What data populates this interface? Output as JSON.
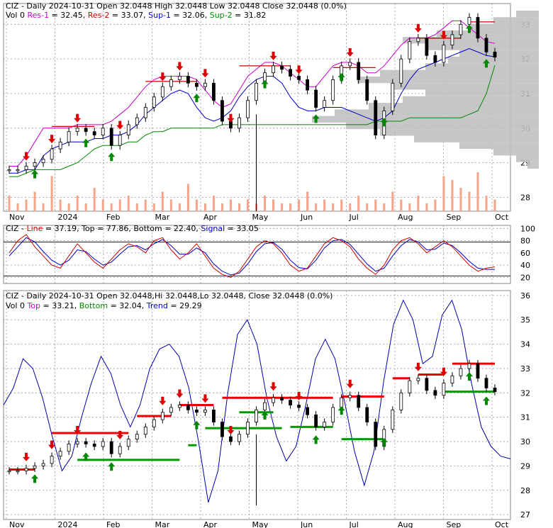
{
  "chart_data": [
    {
      "type": "ohlc",
      "panel": "price",
      "header": {
        "parts": [
          {
            "text": "CIZ - Daily 2024-10-31 Open 32.0448   High 32.0448   Low 32.0448   Close 32.0448 (0.0%)",
            "color": "#000000"
          }
        ],
        "legend": [
          {
            "text": "Vol 0 ",
            "color": "#000000"
          },
          {
            "text": "Res-1",
            "color": "#cc00cc"
          },
          {
            "text": " = 32.45, ",
            "color": "#000000"
          },
          {
            "text": "Res-2",
            "color": "#cc0000"
          },
          {
            "text": " = 33.07, ",
            "color": "#000000"
          },
          {
            "text": "Sup-1",
            "color": "#0000cc"
          },
          {
            "text": " = 32.06, ",
            "color": "#000000"
          },
          {
            "text": "Sup-2",
            "color": "#008800"
          },
          {
            "text": " = 31.82",
            "color": "#000000"
          }
        ]
      },
      "ylim": [
        27.6,
        33.6
      ],
      "yticks": [
        28,
        29,
        30,
        31,
        32,
        33
      ],
      "xlabels": [
        "Nov",
        "2024",
        "Feb",
        "Mar",
        "Apr",
        "May",
        "Jun",
        "Jul",
        "Aug",
        "Sep",
        "Oct"
      ],
      "closes": [
        28.8,
        28.8,
        28.9,
        29.0,
        29.1,
        29.4,
        29.6,
        29.9,
        30.0,
        29.9,
        29.8,
        30.0,
        29.5,
        29.8,
        30.1,
        30.3,
        30.6,
        30.9,
        31.2,
        31.4,
        31.5,
        31.3,
        31.2,
        31.3,
        30.8,
        30.2,
        30.0,
        30.3,
        30.8,
        31.3,
        31.6,
        31.8,
        31.7,
        31.5,
        31.4,
        31.1,
        30.6,
        30.8,
        31.4,
        31.8,
        31.9,
        31.4,
        30.8,
        29.8,
        30.5,
        31.3,
        32.0,
        32.5,
        32.6,
        32.1,
        31.9,
        32.4,
        32.7,
        33.0,
        33.2,
        32.6,
        32.2,
        32.05
      ],
      "resistance_1": [
        28.9,
        28.9,
        29.2,
        29.6,
        30.0,
        30.0,
        30.0,
        30.0,
        30.1,
        30.1,
        30.1,
        30.1,
        30.2,
        30.4,
        30.6,
        30.9,
        31.2,
        31.4,
        31.5,
        31.5,
        31.5,
        31.5,
        31.4,
        31.1,
        30.8,
        30.6,
        30.7,
        31.1,
        31.5,
        31.7,
        31.9,
        31.9,
        31.8,
        31.6,
        31.4,
        31.2,
        31.2,
        31.5,
        31.8,
        31.9,
        31.9,
        31.8,
        31.6,
        31.6,
        31.8,
        32.1,
        32.4,
        32.6,
        32.6,
        32.6,
        32.7,
        32.9,
        33.1,
        33.1,
        32.9,
        32.7,
        32.5,
        32.45
      ],
      "support_1": [
        28.7,
        28.7,
        28.8,
        28.8,
        29.2,
        29.4,
        29.5,
        29.6,
        29.6,
        29.6,
        29.7,
        29.7,
        29.8,
        29.8,
        29.9,
        30.1,
        30.4,
        30.6,
        30.8,
        31.0,
        31.1,
        31.0,
        30.6,
        30.3,
        30.2,
        30.3,
        30.5,
        30.9,
        31.2,
        31.4,
        31.5,
        31.5,
        31.3,
        30.9,
        30.6,
        30.5,
        30.5,
        30.6,
        30.6,
        30.6,
        30.5,
        30.4,
        30.3,
        30.2,
        30.3,
        30.5,
        31.0,
        31.4,
        31.7,
        31.8,
        31.9,
        32.0,
        32.1,
        32.2,
        32.3,
        32.2,
        32.1,
        32.06
      ],
      "support_2": [
        28.6,
        28.6,
        28.7,
        28.8,
        28.8,
        28.8,
        28.8,
        28.9,
        29.0,
        29.2,
        29.4,
        29.5,
        29.5,
        29.5,
        29.6,
        29.6,
        29.8,
        29.9,
        29.9,
        30.0,
        30.0,
        30.0,
        30.0,
        30.0,
        30.0,
        30.1,
        30.1,
        30.1,
        30.1,
        30.1,
        30.1,
        30.1,
        30.1,
        30.1,
        30.1,
        30.1,
        30.1,
        30.1,
        30.1,
        30.1,
        30.1,
        30.1,
        30.1,
        30.2,
        30.2,
        30.2,
        30.2,
        30.3,
        30.3,
        30.3,
        30.3,
        30.3,
        30.3,
        30.3,
        30.4,
        30.5,
        31.0,
        31.82
      ],
      "volume_rel": [
        0.4,
        0.2,
        0.3,
        0.5,
        0.2,
        0.9,
        0.3,
        0.2,
        0.4,
        0.2,
        0.6,
        0.3,
        0.2,
        0.3,
        0.4,
        0.2,
        0.3,
        0.2,
        0.5,
        0.3,
        0.2,
        0.7,
        0.3,
        0.2,
        0.4,
        0.2,
        0.3,
        0.2,
        0.3,
        0.2,
        0.4,
        0.3,
        0.2,
        0.2,
        0.3,
        0.5,
        0.2,
        0.3,
        0.2,
        0.3,
        0.2,
        0.4,
        0.2,
        0.3,
        0.2,
        0.5,
        0.3,
        0.2,
        0.4,
        0.2,
        0.3,
        0.9,
        0.8,
        0.6,
        0.5,
        1.0,
        0.4,
        0.3
      ],
      "buy_signals": [
        3,
        9,
        12,
        22,
        30,
        36,
        39,
        44,
        54,
        56
      ],
      "sell_signals": [
        2,
        5,
        8,
        13,
        18,
        20,
        23,
        26,
        31,
        34,
        40,
        48,
        51
      ],
      "volume_profile_rel": [
        0.05,
        0.1,
        0.2,
        0.35,
        0.55,
        0.7,
        0.85,
        1.0,
        0.9,
        0.75,
        0.6,
        0.5,
        0.65,
        0.8,
        0.7,
        0.5,
        0.4,
        0.35,
        0.5,
        0.6,
        0.45,
        0.3,
        0.2,
        0.1
      ]
    },
    {
      "type": "line",
      "panel": "stochastic",
      "legend": [
        {
          "text": "CIZ - ",
          "color": "#000000"
        },
        {
          "text": "Line",
          "color": "#cc0000"
        },
        {
          "text": " = 37.19, ",
          "color": "#000000"
        },
        {
          "text": "Top",
          "color": "#000000"
        },
        {
          "text": " = 77.86, ",
          "color": "#000000"
        },
        {
          "text": "Bottom",
          "color": "#000000"
        },
        {
          "text": " = 22.40, ",
          "color": "#000000"
        },
        {
          "text": "Signal",
          "color": "#0000cc"
        },
        {
          "text": " = 33.05",
          "color": "#000000"
        }
      ],
      "ylim": [
        10,
        105
      ],
      "yticks": [
        20,
        40,
        60,
        80,
        100
      ],
      "series": [
        {
          "name": "Line",
          "color": "#cc0000",
          "values": [
            60,
            80,
            90,
            70,
            55,
            40,
            35,
            55,
            75,
            60,
            45,
            35,
            50,
            65,
            75,
            70,
            60,
            80,
            85,
            65,
            50,
            60,
            75,
            55,
            35,
            25,
            20,
            30,
            50,
            70,
            80,
            75,
            60,
            40,
            30,
            35,
            55,
            75,
            85,
            80,
            70,
            50,
            35,
            25,
            40,
            65,
            80,
            85,
            75,
            60,
            70,
            80,
            70,
            55,
            40,
            30,
            35,
            37.19
          ]
        },
        {
          "name": "Signal",
          "color": "#0000cc",
          "values": [
            55,
            70,
            85,
            78,
            62,
            48,
            40,
            48,
            65,
            62,
            50,
            40,
            45,
            58,
            70,
            72,
            65,
            75,
            82,
            72,
            58,
            58,
            68,
            60,
            42,
            30,
            24,
            27,
            42,
            62,
            75,
            77,
            66,
            48,
            36,
            34,
            48,
            68,
            80,
            82,
            74,
            58,
            42,
            30,
            35,
            55,
            72,
            82,
            78,
            65,
            66,
            76,
            72,
            60,
            46,
            35,
            33,
            33.05
          ]
        }
      ],
      "top_line": 77.86,
      "bottom_line": 22.4
    },
    {
      "type": "ohlc",
      "panel": "trend",
      "header": {
        "parts": [
          {
            "text": "CIZ - Daily 2024-10-31 Open 32.0448,Hi 32.0448,Lo 32.0448, Close 32.0448 (0.0%)",
            "color": "#000000"
          }
        ],
        "legend": [
          {
            "text": "Vol 0 ",
            "color": "#000000"
          },
          {
            "text": "Top",
            "color": "#cc00cc"
          },
          {
            "text": " = 33.21, ",
            "color": "#000000"
          },
          {
            "text": "Bottom",
            "color": "#008800"
          },
          {
            "text": " = 32.04, ",
            "color": "#000000"
          },
          {
            "text": "Trend",
            "color": "#0000cc"
          },
          {
            "text": " = 29.29",
            "color": "#000000"
          }
        ]
      },
      "ylim": [
        26.8,
        36.2
      ],
      "yticks": [
        27,
        28,
        29,
        30,
        31,
        32,
        33,
        34,
        35,
        36
      ],
      "xlabels": [
        "Nov",
        "2024",
        "Feb",
        "Mar",
        "Apr",
        "May",
        "Jun",
        "Jul",
        "Aug",
        "Sep",
        "Oct"
      ],
      "trend_line": [
        31.5,
        32.2,
        33.4,
        33.0,
        31.8,
        30.2,
        28.8,
        29.4,
        31.0,
        32.4,
        33.5,
        32.8,
        31.5,
        30.6,
        31.5,
        33.0,
        33.8,
        34.0,
        33.5,
        32.2,
        30.0,
        27.5,
        28.8,
        32.0,
        34.4,
        35.0,
        34.0,
        31.8,
        30.2,
        29.2,
        29.8,
        31.5,
        33.4,
        34.2,
        33.4,
        31.6,
        29.6,
        28.2,
        29.6,
        32.5,
        34.8,
        35.8,
        35.0,
        33.2,
        33.5,
        35.2,
        35.8,
        34.6,
        32.4,
        30.6,
        29.8,
        29.4,
        29.29
      ],
      "resistance_segments": [
        [
          0,
          3,
          28.85
        ],
        [
          5,
          14,
          30.35
        ],
        [
          15,
          19,
          31.05
        ],
        [
          20,
          24,
          31.5
        ],
        [
          25,
          38,
          31.8
        ],
        [
          39,
          44,
          31.85
        ],
        [
          45,
          47,
          32.6
        ],
        [
          48,
          51,
          32.75
        ],
        [
          52,
          57,
          33.2
        ]
      ],
      "support_segments": [
        [
          8,
          20,
          29.25
        ],
        [
          21,
          22,
          29.85
        ],
        [
          23,
          32,
          30.55
        ],
        [
          27,
          31,
          31.2
        ],
        [
          33,
          38,
          30.6
        ],
        [
          39,
          44,
          30.1
        ],
        [
          51,
          57,
          32.05
        ]
      ]
    }
  ]
}
